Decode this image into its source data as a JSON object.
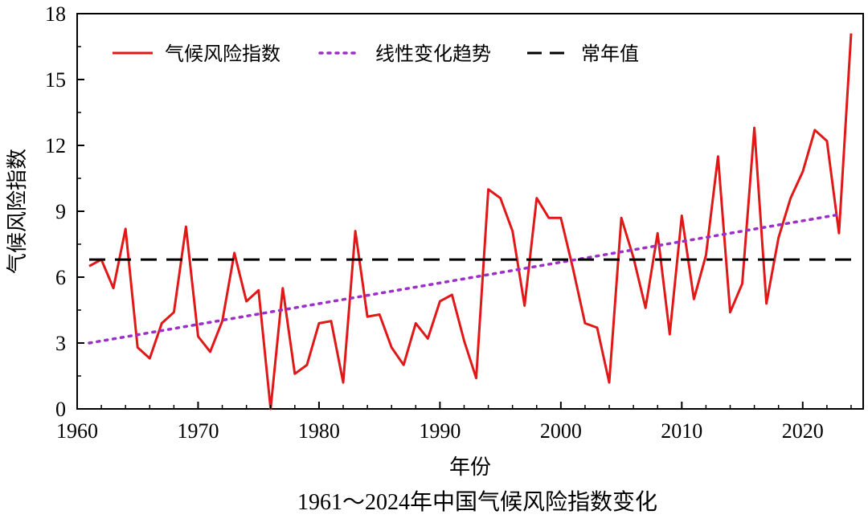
{
  "chart_data": {
    "type": "line",
    "title": "1961～2024年中国气候风险指数变化",
    "xlabel": "年份",
    "ylabel": "气候风险指数",
    "xlim": [
      1960,
      2025
    ],
    "ylim": [
      0,
      18
    ],
    "x_ticks": [
      "1960",
      "1970",
      "1980",
      "1990",
      "2000",
      "2010",
      "2020"
    ],
    "y_ticks": [
      "0",
      "3",
      "6",
      "9",
      "12",
      "15",
      "18"
    ],
    "grid": false,
    "legend_position": "top",
    "legend": [
      {
        "label": "气候风险指数",
        "style": "solid",
        "color": "#e01818"
      },
      {
        "label": "线性变化趋势",
        "style": "dotted",
        "color": "#9b2fc8"
      },
      {
        "label": "常年值",
        "style": "dashed",
        "color": "#000000"
      }
    ],
    "series": [
      {
        "name": "气候风险指数",
        "color": "#e01818",
        "x": [
          1961,
          1962,
          1963,
          1964,
          1965,
          1966,
          1967,
          1968,
          1969,
          1970,
          1971,
          1972,
          1973,
          1974,
          1975,
          1976,
          1977,
          1978,
          1979,
          1980,
          1981,
          1982,
          1983,
          1984,
          1985,
          1986,
          1987,
          1988,
          1989,
          1990,
          1991,
          1992,
          1993,
          1994,
          1995,
          1996,
          1997,
          1998,
          1999,
          2000,
          2001,
          2002,
          2003,
          2004,
          2005,
          2006,
          2007,
          2008,
          2009,
          2010,
          2011,
          2012,
          2013,
          2014,
          2015,
          2016,
          2017,
          2018,
          2019,
          2020,
          2021,
          2022,
          2023,
          2024
        ],
        "y": [
          6.5,
          6.8,
          5.5,
          8.2,
          2.8,
          2.3,
          3.9,
          4.4,
          8.3,
          3.3,
          2.6,
          4.0,
          7.1,
          4.9,
          5.4,
          0.0,
          5.5,
          1.6,
          2.0,
          3.9,
          4.0,
          1.2,
          8.1,
          4.2,
          4.3,
          2.8,
          2.0,
          3.9,
          3.2,
          4.9,
          5.2,
          3.1,
          1.4,
          10.0,
          9.6,
          8.1,
          4.7,
          9.6,
          8.7,
          8.7,
          6.4,
          3.9,
          3.7,
          1.2,
          8.7,
          6.9,
          4.6,
          8.0,
          3.4,
          8.8,
          5.0,
          7.0,
          11.5,
          4.4,
          5.7,
          12.8,
          4.8,
          7.8,
          9.6,
          10.8,
          12.7,
          12.2,
          8.0,
          17.1
        ]
      },
      {
        "name": "线性变化趋势",
        "color": "#9b2fc8",
        "x": [
          1961,
          2023
        ],
        "y": [
          3.0,
          8.85
        ]
      },
      {
        "name": "常年值",
        "color": "#000000",
        "x": [
          1961,
          2024
        ],
        "y": [
          6.8,
          6.8
        ]
      }
    ]
  }
}
